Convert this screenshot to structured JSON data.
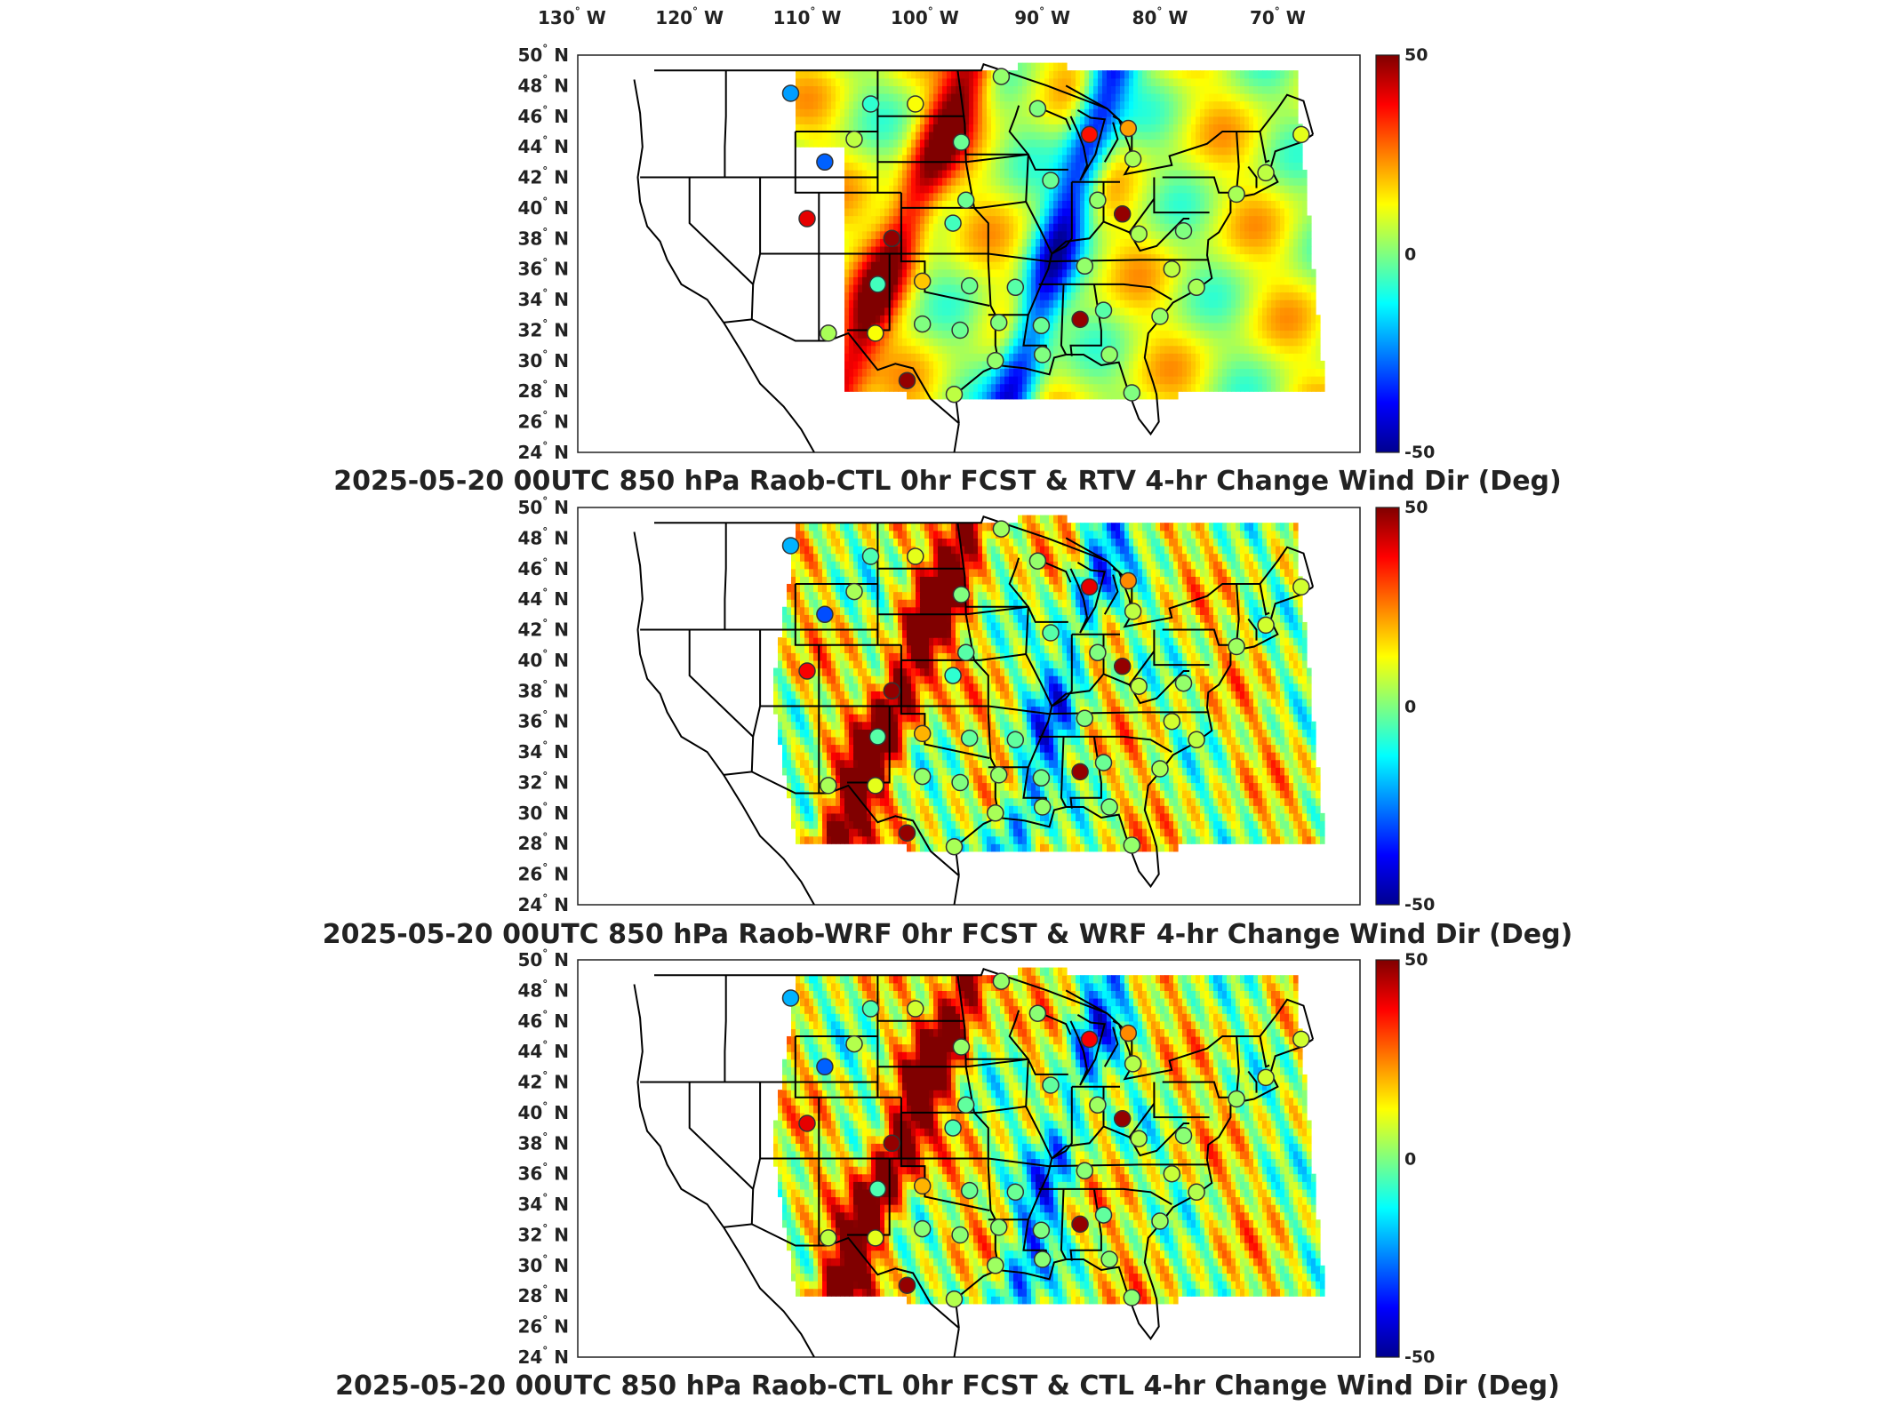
{
  "figure": {
    "longitude_labels": [
      "130",
      "120",
      "110",
      "100",
      "90",
      "80",
      "70"
    ],
    "longitude_hemisphere": "W",
    "latitude_labels": [
      "50",
      "48",
      "46",
      "44",
      "42",
      "40",
      "38",
      "36",
      "34",
      "32",
      "30",
      "28",
      "26",
      "24"
    ],
    "latitude_hemisphere": "N",
    "degree_symbol": "°",
    "colorbar": {
      "max_label": "50",
      "mid_label": "0",
      "min_label": "-50",
      "range": [
        -50,
        50
      ],
      "colormap": "jet"
    }
  },
  "panels": [
    {
      "title": "2025-05-20 00UTC 850 hPa Raob-CTL 0hr FCST & RTV 4-hr Change Wind Dir (Deg)"
    },
    {
      "title": "2025-05-20 00UTC 850 hPa Raob-WRF 0hr FCST & WRF 4-hr Change Wind Dir (Deg)"
    },
    {
      "title": "2025-05-20 00UTC 850 hPa Raob-CTL 0hr FCST & CTL 4-hr Change Wind Dir (Deg)"
    }
  ],
  "stations": [
    {
      "lon": -111.4,
      "lat": 47.5,
      "v": [
        -22,
        -20,
        -20
      ]
    },
    {
      "lon": -104.6,
      "lat": 46.8,
      "v": [
        -8,
        -5,
        -5
      ]
    },
    {
      "lon": -106.0,
      "lat": 44.5,
      "v": [
        6,
        4,
        5
      ]
    },
    {
      "lon": -108.5,
      "lat": 43.0,
      "v": [
        -28,
        -30,
        -28
      ]
    },
    {
      "lon": -100.8,
      "lat": 46.8,
      "v": [
        12,
        10,
        8
      ]
    },
    {
      "lon": -93.5,
      "lat": 48.6,
      "v": [
        2,
        3,
        2
      ]
    },
    {
      "lon": -90.4,
      "lat": 46.5,
      "v": [
        0,
        2,
        1
      ]
    },
    {
      "lon": -96.9,
      "lat": 44.3,
      "v": [
        -2,
        0,
        2
      ]
    },
    {
      "lon": -86.0,
      "lat": 44.8,
      "v": [
        36,
        40,
        38
      ]
    },
    {
      "lon": -82.7,
      "lat": 45.2,
      "v": [
        22,
        24,
        24
      ]
    },
    {
      "lon": -82.3,
      "lat": 43.2,
      "v": [
        4,
        6,
        5
      ]
    },
    {
      "lon": -89.3,
      "lat": 41.8,
      "v": [
        -2,
        -4,
        -3
      ]
    },
    {
      "lon": -85.3,
      "lat": 40.5,
      "v": [
        2,
        0,
        3
      ]
    },
    {
      "lon": -83.2,
      "lat": 39.6,
      "v": [
        48,
        48,
        48
      ]
    },
    {
      "lon": -110.0,
      "lat": 39.3,
      "v": [
        40,
        38,
        40
      ]
    },
    {
      "lon": -102.8,
      "lat": 38.0,
      "v": [
        48,
        48,
        48
      ]
    },
    {
      "lon": -97.6,
      "lat": 39.0,
      "v": [
        -6,
        -8,
        -5
      ]
    },
    {
      "lon": -96.5,
      "lat": 40.5,
      "v": [
        -2,
        -4,
        -3
      ]
    },
    {
      "lon": -86.4,
      "lat": 36.2,
      "v": [
        2,
        0,
        1
      ]
    },
    {
      "lon": -81.8,
      "lat": 38.3,
      "v": [
        4,
        6,
        5
      ]
    },
    {
      "lon": -79.0,
      "lat": 36.0,
      "v": [
        6,
        8,
        7
      ]
    },
    {
      "lon": -78.0,
      "lat": 38.5,
      "v": [
        0,
        2,
        1
      ]
    },
    {
      "lon": -104.0,
      "lat": 35.0,
      "v": [
        -6,
        -4,
        -5
      ]
    },
    {
      "lon": -100.2,
      "lat": 35.2,
      "v": [
        18,
        20,
        20
      ]
    },
    {
      "lon": -96.2,
      "lat": 34.9,
      "v": [
        -2,
        -3,
        -2
      ]
    },
    {
      "lon": -92.3,
      "lat": 34.8,
      "v": [
        -4,
        -3,
        -2
      ]
    },
    {
      "lon": -100.2,
      "lat": 32.4,
      "v": [
        0,
        2,
        1
      ]
    },
    {
      "lon": -104.2,
      "lat": 31.8,
      "v": [
        12,
        10,
        10
      ]
    },
    {
      "lon": -108.2,
      "lat": 31.8,
      "v": [
        4,
        4,
        6
      ]
    },
    {
      "lon": -97.0,
      "lat": 32.0,
      "v": [
        -2,
        0,
        1
      ]
    },
    {
      "lon": -93.7,
      "lat": 32.5,
      "v": [
        0,
        2,
        1
      ]
    },
    {
      "lon": -90.1,
      "lat": 32.3,
      "v": [
        -2,
        -1,
        0
      ]
    },
    {
      "lon": -86.8,
      "lat": 32.7,
      "v": [
        48,
        48,
        48
      ]
    },
    {
      "lon": -84.8,
      "lat": 33.3,
      "v": [
        -4,
        -2,
        -3
      ]
    },
    {
      "lon": -80.0,
      "lat": 32.9,
      "v": [
        2,
        4,
        3
      ]
    },
    {
      "lon": -97.5,
      "lat": 27.8,
      "v": [
        6,
        4,
        5
      ]
    },
    {
      "lon": -101.5,
      "lat": 28.7,
      "v": [
        48,
        48,
        48
      ]
    },
    {
      "lon": -94.0,
      "lat": 30.0,
      "v": [
        2,
        4,
        3
      ]
    },
    {
      "lon": -90.0,
      "lat": 30.4,
      "v": [
        0,
        2,
        1
      ]
    },
    {
      "lon": -84.3,
      "lat": 30.4,
      "v": [
        2,
        0,
        1
      ]
    },
    {
      "lon": -82.4,
      "lat": 27.9,
      "v": [
        0,
        2,
        1
      ]
    },
    {
      "lon": -76.9,
      "lat": 34.8,
      "v": [
        4,
        6,
        5
      ]
    },
    {
      "lon": -73.5,
      "lat": 40.9,
      "v": [
        4,
        3,
        3
      ]
    },
    {
      "lon": -71.0,
      "lat": 42.3,
      "v": [
        6,
        8,
        8
      ]
    },
    {
      "lon": -68.0,
      "lat": 44.8,
      "v": [
        10,
        8,
        8
      ]
    }
  ]
}
